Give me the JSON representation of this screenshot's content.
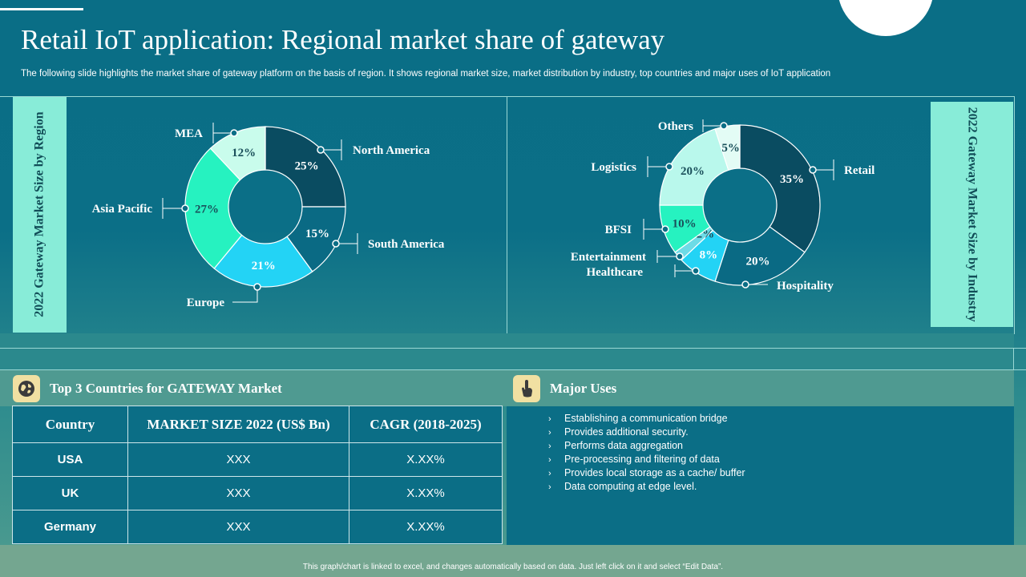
{
  "title": "Retail IoT application: Regional market share of gateway",
  "subtitle": "The following slide highlights the market share of gateway platform on the basis of region. It shows regional market size, market distribution by industry, top countries and major uses of IoT application",
  "left_panel_label": "2022 Gateway Market Size by Region",
  "right_panel_label": "2022 Gateway Market Size by Industry",
  "chart_data": [
    {
      "type": "pie",
      "title": "2022 Gateway Market Size by Region",
      "donut": true,
      "categories": [
        "North America",
        "South America",
        "Europe",
        "Asia Pacific",
        "MEA"
      ],
      "values": [
        25,
        15,
        21,
        27,
        12
      ],
      "labels": [
        "25%",
        "15%",
        "21%",
        "27%",
        "12%"
      ],
      "colors": [
        "#0a4c61",
        "#0a6a84",
        "#23d3f5",
        "#26f2c0",
        "#c9fcec"
      ],
      "label_colors": [
        "#ffffff",
        "#ffffff",
        "#ffffff",
        "#1a4f5a",
        "#1a4f5a"
      ]
    },
    {
      "type": "pie",
      "title": "2022 Gateway Market Size by Industry",
      "donut": true,
      "categories": [
        "Retail",
        "Hospitality",
        "Healthcare",
        "Entertainment",
        "BFSI",
        "Logistics",
        "Others"
      ],
      "values": [
        35,
        20,
        8,
        2,
        10,
        20,
        5
      ],
      "labels": [
        "35%",
        "20%",
        "8%",
        "2%",
        "10%",
        "20%",
        "5%"
      ],
      "colors": [
        "#0a4c61",
        "#0a6a84",
        "#23d3f5",
        "#6ddbe6",
        "#26f2c0",
        "#b9f8ec",
        "#e3fcf5"
      ],
      "label_colors": [
        "#ffffff",
        "#ffffff",
        "#ffffff",
        "#1a4f5a",
        "#1a4f5a",
        "#1a4f5a",
        "#1a4f5a"
      ]
    }
  ],
  "countries_section": {
    "heading": "Top 3 Countries for GATEWAY Market",
    "columns": [
      "Country",
      "MARKET SIZE 2022 (US$ Bn)",
      "CAGR (2018-2025)"
    ],
    "rows": [
      [
        "USA",
        "XXX",
        "X.XX%"
      ],
      [
        "UK",
        "XXX",
        "X.XX%"
      ],
      [
        "Germany",
        "XXX",
        "X.XX%"
      ]
    ]
  },
  "uses_section": {
    "heading": "Major Uses",
    "items": [
      "Establishing a communication bridge",
      "Provides additional security.",
      "Performs data aggregation",
      "Pre-processing and filtering of data",
      "Provides local storage as a cache/ buffer",
      "Data computing at edge level."
    ]
  },
  "footer_note": "This graph/chart is linked to excel, and changes automatically based on data. Just left click on it and select “Edit Data”.",
  "icons": {
    "countries": "globe-icon",
    "uses": "hand-pointer-icon"
  }
}
